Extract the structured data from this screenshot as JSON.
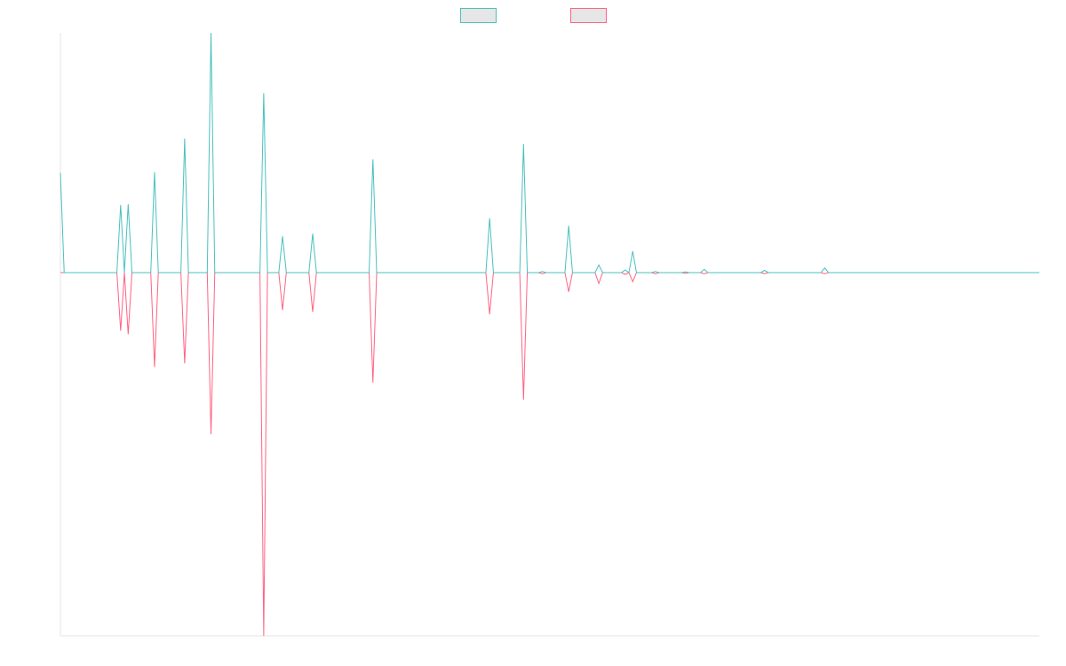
{
  "chart_data": {
    "type": "line",
    "title": "",
    "xlabel": "",
    "ylabel": "",
    "ylim": [
      -100,
      66
    ],
    "grid": false,
    "legend_position": "top-center",
    "series": [
      {
        "color": "#4bc0c0",
        "fill": "#e6e6e6",
        "points": [
          [
            0,
            27.5
          ],
          [
            1,
            0
          ],
          [
            15,
            0
          ],
          [
            16,
            18.6
          ],
          [
            17,
            0
          ],
          [
            18,
            18.8
          ],
          [
            19,
            0
          ],
          [
            24,
            0
          ],
          [
            25,
            27.6
          ],
          [
            26,
            0
          ],
          [
            32,
            0
          ],
          [
            33,
            36.9
          ],
          [
            34,
            0
          ],
          [
            39,
            0
          ],
          [
            40,
            66
          ],
          [
            41,
            0
          ],
          [
            53,
            0
          ],
          [
            54,
            49.4
          ],
          [
            55,
            0
          ],
          [
            58,
            0
          ],
          [
            59,
            10
          ],
          [
            60,
            0
          ],
          [
            66,
            0
          ],
          [
            67,
            10.7
          ],
          [
            68,
            0
          ],
          [
            82,
            0
          ],
          [
            83,
            31.2
          ],
          [
            84,
            0
          ],
          [
            113,
            0
          ],
          [
            114,
            15
          ],
          [
            115,
            0
          ],
          [
            122,
            0
          ],
          [
            123,
            35.4
          ],
          [
            124,
            0
          ],
          [
            127,
            0
          ],
          [
            128,
            0.3
          ],
          [
            129,
            0
          ],
          [
            134,
            0
          ],
          [
            135,
            12.9
          ],
          [
            136,
            0
          ],
          [
            142,
            0
          ],
          [
            143,
            2.1
          ],
          [
            144,
            0
          ],
          [
            149,
            0
          ],
          [
            150,
            0.7
          ],
          [
            151,
            0
          ],
          [
            152,
            5.9
          ],
          [
            153,
            0
          ],
          [
            157,
            0
          ],
          [
            158,
            0.3
          ],
          [
            159,
            0
          ],
          [
            165,
            0
          ],
          [
            166,
            0.2
          ],
          [
            167,
            0
          ],
          [
            170,
            0
          ],
          [
            171,
            0.9
          ],
          [
            172,
            0
          ],
          [
            186,
            0
          ],
          [
            187,
            0.6
          ],
          [
            188,
            0
          ],
          [
            202,
            0
          ],
          [
            203,
            1.3
          ],
          [
            204,
            0
          ],
          [
            260,
            0
          ]
        ]
      },
      {
        "color": "#ff6384",
        "fill": "#e6e6e6",
        "points": [
          [
            0,
            0
          ],
          [
            15,
            0
          ],
          [
            16,
            -16
          ],
          [
            17,
            0
          ],
          [
            18,
            -17
          ],
          [
            19,
            0
          ],
          [
            24,
            0
          ],
          [
            25,
            -26
          ],
          [
            26,
            0
          ],
          [
            32,
            0
          ],
          [
            33,
            -25
          ],
          [
            34,
            0
          ],
          [
            39,
            0
          ],
          [
            40,
            -44.5
          ],
          [
            41,
            0
          ],
          [
            53,
            0
          ],
          [
            54,
            -100
          ],
          [
            55,
            0
          ],
          [
            58,
            0
          ],
          [
            59,
            -10.3
          ],
          [
            60,
            0
          ],
          [
            66,
            0
          ],
          [
            67,
            -10.8
          ],
          [
            68,
            0
          ],
          [
            82,
            0
          ],
          [
            83,
            -30.3
          ],
          [
            84,
            0
          ],
          [
            113,
            0
          ],
          [
            114,
            -11.5
          ],
          [
            115,
            0
          ],
          [
            122,
            0
          ],
          [
            123,
            -35
          ],
          [
            124,
            0
          ],
          [
            127,
            0
          ],
          [
            128,
            -0.3
          ],
          [
            129,
            0
          ],
          [
            134,
            0
          ],
          [
            135,
            -5.3
          ],
          [
            136,
            0
          ],
          [
            142,
            0
          ],
          [
            143,
            -3
          ],
          [
            144,
            0
          ],
          [
            149,
            0
          ],
          [
            150,
            -0.5
          ],
          [
            151,
            0
          ],
          [
            152,
            -2.5
          ],
          [
            153,
            0
          ],
          [
            157,
            0
          ],
          [
            158,
            -0.3
          ],
          [
            159,
            0
          ],
          [
            165,
            0
          ],
          [
            166,
            -0.2
          ],
          [
            167,
            0
          ],
          [
            170,
            0
          ],
          [
            171,
            -0.3
          ],
          [
            172,
            0
          ],
          [
            186,
            0
          ],
          [
            187,
            -0.3
          ],
          [
            188,
            0
          ],
          [
            202,
            0
          ],
          [
            203,
            -0.3
          ],
          [
            204,
            0
          ],
          [
            260,
            0
          ]
        ]
      }
    ]
  }
}
